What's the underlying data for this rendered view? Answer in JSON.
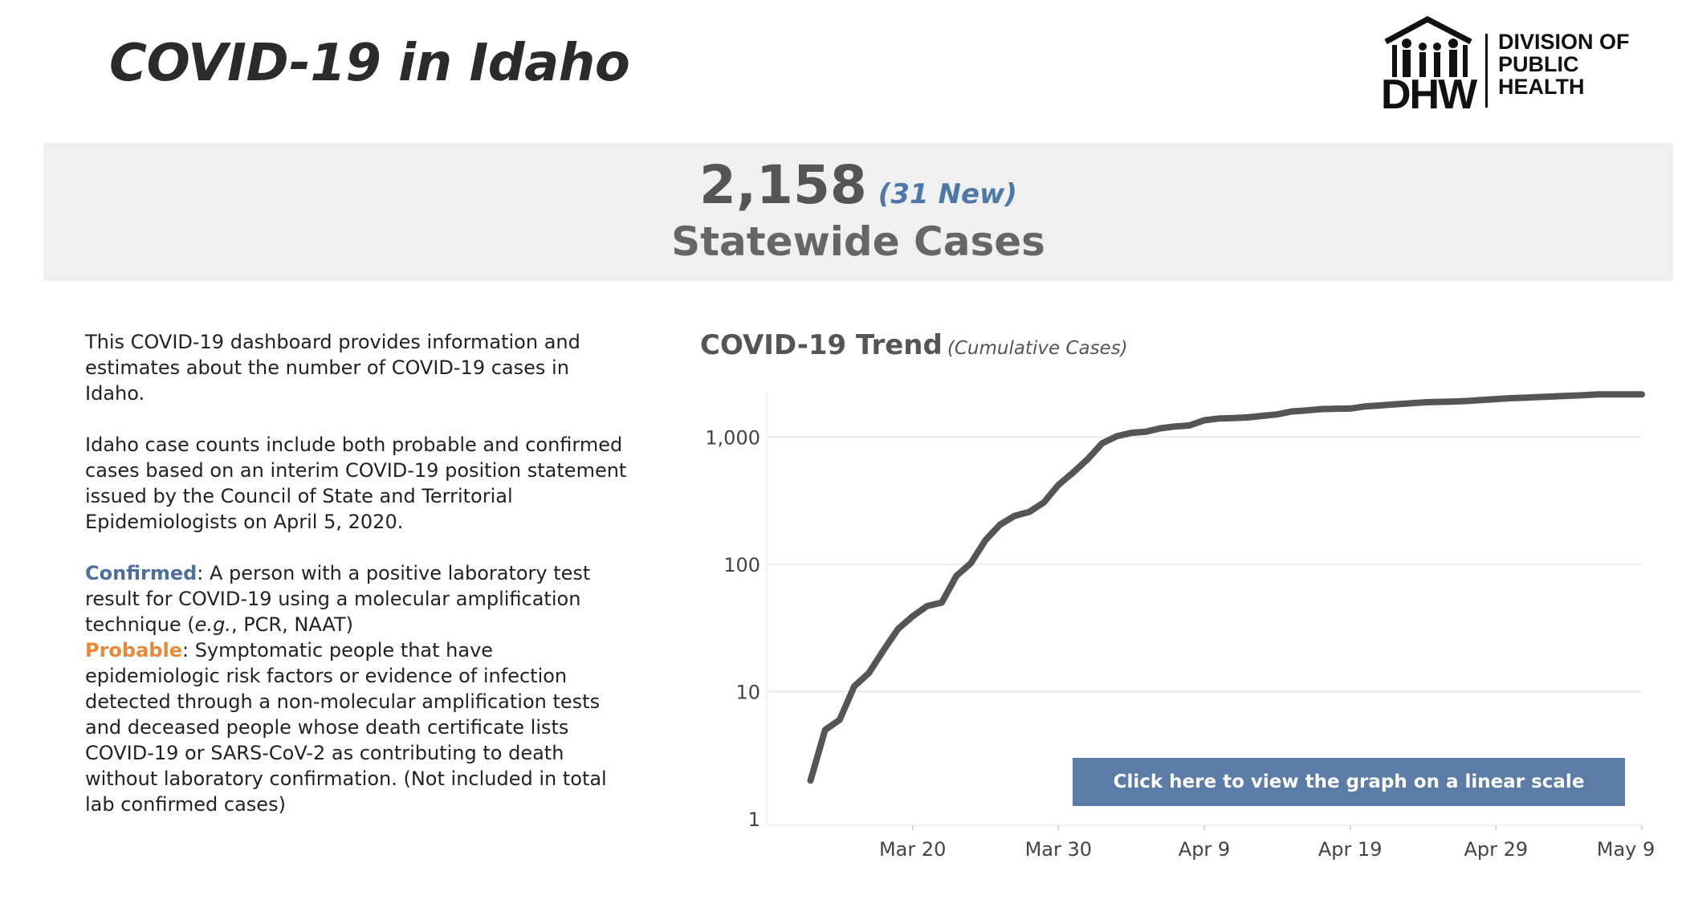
{
  "header": {
    "title": "COVID-19 in Idaho",
    "logo": {
      "mark": "DHW",
      "lines": [
        "DIVISION OF",
        "PUBLIC",
        "HEALTH"
      ]
    }
  },
  "summary": {
    "count": "2,158",
    "new": "(31 New)",
    "label": "Statewide Cases"
  },
  "info": {
    "paragraph1": "This COVID-19 dashboard provides information and estimates about the number of COVID-19 cases in Idaho.",
    "paragraph2": "Idaho case counts include both probable and confirmed cases based on an interim COVID-19 position statement issued by the Council of State and Territorial Epidemiologists on April 5, 2020.",
    "confirmed_term": "Confirmed",
    "confirmed_def_1": ": A person with a positive laboratory test result for COVID-19 using a molecular amplification technique (",
    "confirmed_def_eg": "e.g.",
    "confirmed_def_2": ", PCR, NAAT)",
    "probable_term": "Probable",
    "probable_def": ": Symptomatic people that have epidemiologic risk factors or evidence of infection detected through a non-molecular amplification tests and deceased people whose death certificate lists COVID-19 or SARS-CoV-2 as contributing to death without laboratory confirmation. (Not included in total lab confirmed cases)"
  },
  "chart": {
    "title": "COVID-19 Trend",
    "subtitle": "(Cumulative Cases)",
    "button_label": "Click here to view the graph on a linear scale"
  },
  "chart_data": {
    "type": "line",
    "title": "COVID-19 Trend",
    "subtitle": "(Cumulative Cases)",
    "y_scale": "log",
    "ylim": [
      1,
      2200
    ],
    "y_ticks": [
      1,
      10,
      100,
      1000
    ],
    "y_tick_labels": [
      "1",
      "10",
      "100",
      "1,000"
    ],
    "x_ticks": [
      "2020-03-20",
      "2020-03-30",
      "2020-04-09",
      "2020-04-19",
      "2020-04-29",
      "2020-05-09"
    ],
    "x_tick_labels": [
      "Mar 20",
      "Mar 30",
      "Apr 9",
      "Apr 19",
      "Apr 29",
      "May 9"
    ],
    "x_range": [
      "2020-03-10",
      "2020-05-09"
    ],
    "grid": true,
    "line_color": "#555555",
    "series": [
      {
        "x": [
          "2020-03-13",
          "2020-03-14",
          "2020-03-15",
          "2020-03-16",
          "2020-03-17",
          "2020-03-18",
          "2020-03-19",
          "2020-03-20",
          "2020-03-21",
          "2020-03-22",
          "2020-03-23",
          "2020-03-24",
          "2020-03-25",
          "2020-03-26",
          "2020-03-27",
          "2020-03-28",
          "2020-03-29",
          "2020-03-30",
          "2020-03-31",
          "2020-04-01",
          "2020-04-02",
          "2020-04-03",
          "2020-04-04",
          "2020-04-05",
          "2020-04-06",
          "2020-04-07",
          "2020-04-08",
          "2020-04-09",
          "2020-04-10",
          "2020-04-11",
          "2020-04-12",
          "2020-04-13",
          "2020-04-14",
          "2020-04-15",
          "2020-04-16",
          "2020-04-17",
          "2020-04-18",
          "2020-04-19",
          "2020-04-20",
          "2020-04-21",
          "2020-04-22",
          "2020-04-23",
          "2020-04-24",
          "2020-04-25",
          "2020-04-26",
          "2020-04-27",
          "2020-04-28",
          "2020-04-29",
          "2020-04-30",
          "2020-05-01",
          "2020-05-02",
          "2020-05-03",
          "2020-05-04",
          "2020-05-05",
          "2020-05-06",
          "2020-05-07",
          "2020-05-08",
          "2020-05-09"
        ],
        "y": [
          2,
          5,
          6,
          11,
          14,
          21,
          31,
          39,
          47,
          50,
          81,
          102,
          155,
          205,
          240,
          258,
          306,
          420,
          525,
          669,
          891,
          1013,
          1078,
          1101,
          1170,
          1210,
          1232,
          1353,
          1396,
          1407,
          1426,
          1464,
          1504,
          1587,
          1617,
          1655,
          1668,
          1672,
          1736,
          1766,
          1802,
          1836,
          1870,
          1887,
          1897,
          1917,
          1952,
          1984,
          2015,
          2035,
          2061,
          2081,
          2106,
          2127,
          2158,
          2158,
          2158,
          2158
        ]
      }
    ]
  }
}
